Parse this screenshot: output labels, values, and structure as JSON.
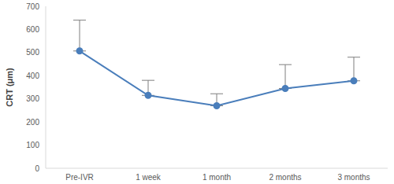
{
  "chart_data": {
    "type": "line",
    "y_label": "CRT (μm)",
    "categories": [
      "Pre-IVR",
      "1 week",
      "1 month",
      "2 months",
      "3 months"
    ],
    "values": [
      507,
      315,
      270,
      345,
      378
    ],
    "errors": [
      133,
      65,
      52,
      103,
      102
    ],
    "color": "#4a7ebb",
    "marker": "circle",
    "ylim": [
      0,
      700
    ],
    "yticks": [
      0,
      100,
      200,
      300,
      400,
      500,
      600,
      700
    ],
    "grid": false
  }
}
